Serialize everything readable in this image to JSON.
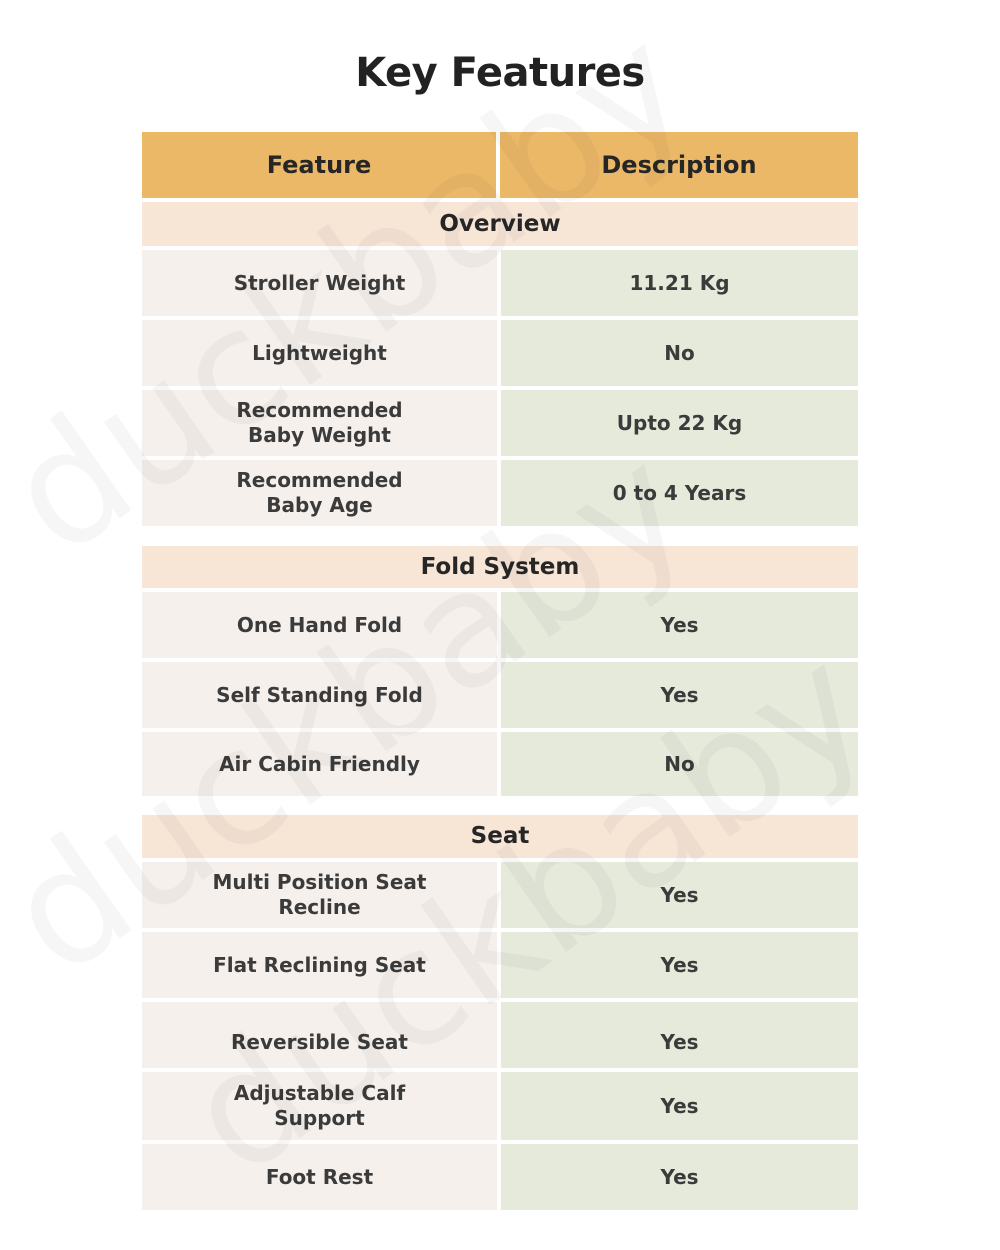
{
  "title": "Key Features",
  "watermark": "duckbaby",
  "colors": {
    "header": "#ebb868",
    "section": "#f7e5d6",
    "feature_cell": "#f5f0ec",
    "description_cell": "#e6eadb"
  },
  "header": {
    "feature": "Feature",
    "description": "Description"
  },
  "sections": [
    {
      "title": "Overview",
      "rows": [
        {
          "feature": "Stroller Weight",
          "description": "11.21 Kg"
        },
        {
          "feature": "Lightweight",
          "description": "No"
        },
        {
          "feature": "Recommended Baby Weight",
          "description": "Upto 22 Kg"
        },
        {
          "feature": "Recommended Baby Age",
          "description": "0 to 4 Years"
        }
      ]
    },
    {
      "title": "Fold System",
      "rows": [
        {
          "feature": "One Hand Fold",
          "description": "Yes"
        },
        {
          "feature": "Self Standing Fold",
          "description": "Yes"
        },
        {
          "feature": "Air Cabin Friendly",
          "description": "No"
        }
      ]
    },
    {
      "title": "Seat",
      "rows": [
        {
          "feature": "Multi Position Seat Recline",
          "description": "Yes"
        },
        {
          "feature": "Flat Reclining Seat",
          "description": "Yes"
        },
        {
          "feature": "Reversible Seat",
          "description": "Yes"
        },
        {
          "feature": "Adjustable Calf Support",
          "description": "Yes"
        },
        {
          "feature": "Foot Rest",
          "description": "Yes"
        }
      ]
    }
  ]
}
